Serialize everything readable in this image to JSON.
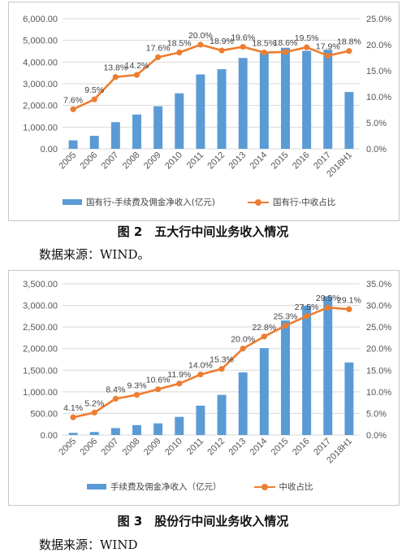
{
  "figures": [
    {
      "caption": "图 2　五大行中间业务收入情况",
      "source": "数据来源：WIND。"
    },
    {
      "caption": "图 3　股份行中间业务收入情况",
      "source": "数据来源：WIND"
    }
  ],
  "colors": {
    "bar": "#5b9bd5",
    "line": "#ed7d31"
  },
  "chart_data": [
    {
      "type": "bar",
      "categories": [
        "2005",
        "2006",
        "2007",
        "2008",
        "2009",
        "2010",
        "2011",
        "2012",
        "2013",
        "2014",
        "2015",
        "2016",
        "2017",
        "2018H1"
      ],
      "series": [
        {
          "name": "国有行-手续费及佣金净收入(亿元)",
          "type": "bar",
          "axis": "left",
          "values": [
            390,
            600,
            1230,
            1580,
            1960,
            2560,
            3430,
            3670,
            4190,
            4420,
            4660,
            4520,
            4570,
            2620
          ]
        },
        {
          "name": "国有行-中收占比",
          "type": "line",
          "axis": "right",
          "values": [
            7.6,
            9.5,
            13.8,
            14.2,
            17.6,
            18.5,
            20.0,
            18.9,
            19.6,
            18.5,
            18.6,
            19.5,
            17.9,
            18.8
          ],
          "labels": [
            "7.6%",
            "9.5%",
            "13.8%",
            "14.2%",
            "17.6%",
            "18.5%",
            "20.0%",
            "18.9%",
            "19.6%",
            "18.5%",
            "18.6%",
            "19.5%",
            "17.9%",
            "18.8%"
          ]
        }
      ],
      "ylim_left": [
        0,
        6000
      ],
      "yticks_left": [
        "0.00",
        "1,000.00",
        "2,000.00",
        "3,000.00",
        "4,000.00",
        "5,000.00",
        "6,000.00"
      ],
      "ylim_right": [
        0,
        25
      ],
      "yticks_right": [
        "0.0%",
        "5.0%",
        "10.0%",
        "15.0%",
        "20.0%",
        "25.0%"
      ],
      "grid": true,
      "legend": "bottom"
    },
    {
      "type": "bar",
      "categories": [
        "2005",
        "2006",
        "2007",
        "2008",
        "2009",
        "2010",
        "2011",
        "2012",
        "2013",
        "2014",
        "2015",
        "2016",
        "2017",
        "2018H1"
      ],
      "series": [
        {
          "name": "手续费及佣金净收入（亿元）",
          "type": "bar",
          "axis": "left",
          "values": [
            50,
            70,
            160,
            230,
            270,
            420,
            680,
            930,
            1450,
            2010,
            2650,
            2990,
            3210,
            1680
          ]
        },
        {
          "name": "中收占比",
          "type": "line",
          "axis": "right",
          "values": [
            4.1,
            5.2,
            8.4,
            9.3,
            10.6,
            11.9,
            14.0,
            15.3,
            20.0,
            22.8,
            25.3,
            27.5,
            29.5,
            29.1
          ],
          "labels": [
            "4.1%",
            "5.2%",
            "8.4%",
            "9.3%",
            "10.6%",
            "11.9%",
            "14.0%",
            "15.3%",
            "20.0%",
            "22.8%",
            "25.3%",
            "27.5%",
            "29.5%",
            "29.1%"
          ]
        }
      ],
      "ylim_left": [
        0,
        3500
      ],
      "yticks_left": [
        "0.00",
        "500.00",
        "1,000.00",
        "1,500.00",
        "2,000.00",
        "2,500.00",
        "3,000.00",
        "3,500.00"
      ],
      "ylim_right": [
        0,
        35
      ],
      "yticks_right": [
        "0.0%",
        "5.0%",
        "10.0%",
        "15.0%",
        "20.0%",
        "25.0%",
        "30.0%",
        "35.0%"
      ],
      "grid": true,
      "legend": "bottom"
    }
  ]
}
